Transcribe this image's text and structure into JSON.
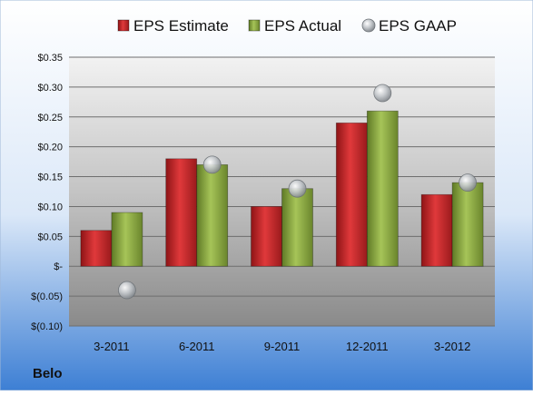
{
  "chart_data": {
    "type": "bar",
    "categories": [
      "3-2011",
      "6-2011",
      "9-2011",
      "12-2011",
      "3-2012"
    ],
    "series": [
      {
        "name": "EPS Estimate",
        "kind": "bar",
        "color": "#c0282a",
        "values": [
          0.06,
          0.18,
          0.1,
          0.24,
          0.12
        ]
      },
      {
        "name": "EPS Actual",
        "kind": "bar",
        "color": "#8aa843",
        "values": [
          0.09,
          0.17,
          0.13,
          0.26,
          0.14
        ]
      },
      {
        "name": "EPS GAAP",
        "kind": "marker",
        "color": "#b4b8bc",
        "values": [
          -0.04,
          0.17,
          0.13,
          0.29,
          0.14
        ]
      }
    ],
    "ylim": [
      -0.1,
      0.35
    ],
    "yticks": [
      -0.1,
      -0.05,
      0,
      0.05,
      0.1,
      0.15,
      0.2,
      0.25,
      0.3,
      0.35
    ],
    "ytick_labels": [
      "$(0.10)",
      "$(0.05)",
      "$-",
      "$0.05",
      "$0.10",
      "$0.15",
      "$0.20",
      "$0.25",
      "$0.30",
      "$0.35"
    ],
    "grid": true,
    "legend_position": "top",
    "company_label": "Belo"
  }
}
